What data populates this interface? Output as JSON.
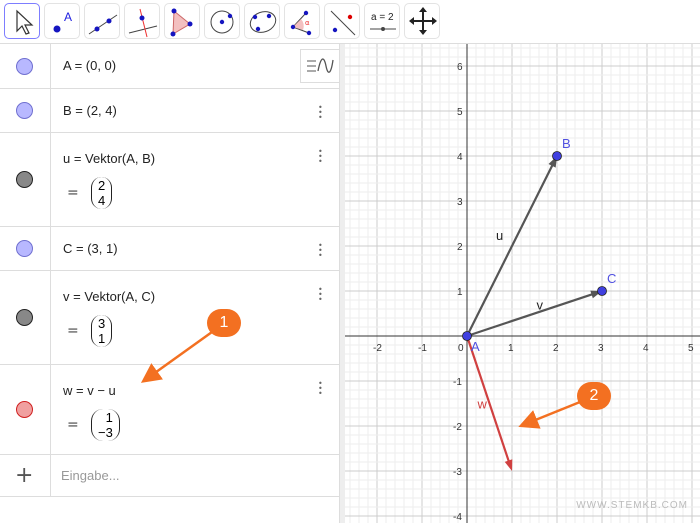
{
  "toolbar": {
    "tools": [
      {
        "name": "move-tool",
        "selected": true
      },
      {
        "name": "point-tool"
      },
      {
        "name": "line-tool"
      },
      {
        "name": "perpendicular-line-tool"
      },
      {
        "name": "polygon-tool"
      },
      {
        "name": "circle-tool"
      },
      {
        "name": "conic-tool"
      },
      {
        "name": "angle-tool"
      },
      {
        "name": "reflect-tool"
      },
      {
        "name": "slider-tool",
        "label": "a = 2"
      },
      {
        "name": "move-graphics-view-tool"
      }
    ]
  },
  "algebra": {
    "style_bar_icon": "algebra-style-icon",
    "rows": [
      {
        "def": "A = (0, 0)",
        "color": "#b8b8ff"
      },
      {
        "def": "B = (2, 4)",
        "color": "#b8b8ff"
      },
      {
        "def": "u = Vektor(A, B)",
        "eq": "=",
        "vec": [
          "2",
          "4"
        ],
        "color": "#888888"
      },
      {
        "def": "C = (3, 1)",
        "color": "#b8b8ff"
      },
      {
        "def": "v = Vektor(A, C)",
        "eq": "=",
        "vec": [
          "3",
          "1"
        ],
        "color": "#888888"
      },
      {
        "def": "w = v − u",
        "eq": "=",
        "vec": [
          "1",
          "−3"
        ],
        "color": "#f0a0a0"
      }
    ],
    "input_placeholder": "Eingabe...",
    "add_icon": "+"
  },
  "graphics": {
    "x_range": [
      -2.5,
      5.1
    ],
    "y_range": [
      -4.1,
      6.4
    ],
    "x_ticks": [
      "-2",
      "-1",
      "0",
      "1",
      "2",
      "3",
      "4",
      "5"
    ],
    "y_ticks": [
      "6",
      "5",
      "4",
      "3",
      "2",
      "1",
      "-1",
      "-2",
      "-3",
      "-4"
    ],
    "points": [
      {
        "label": "A",
        "x": 0,
        "y": 0
      },
      {
        "label": "B",
        "x": 2,
        "y": 4
      },
      {
        "label": "C",
        "x": 3,
        "y": 1
      }
    ],
    "vectors": [
      {
        "label": "u",
        "from": [
          0,
          0
        ],
        "to": [
          2,
          4
        ],
        "color": "#555555"
      },
      {
        "label": "v",
        "from": [
          0,
          0
        ],
        "to": [
          3,
          1
        ],
        "color": "#555555"
      },
      {
        "label": "w",
        "from": [
          0,
          0
        ],
        "to": [
          1,
          -3
        ],
        "color": "#d04040"
      }
    ],
    "point_color": "#4040e0",
    "label_color": "#5050e0"
  },
  "annotations": [
    {
      "label": "1"
    },
    {
      "label": "2"
    }
  ],
  "accent_color": "#f37021",
  "watermark": "WWW.STEMKB.COM"
}
